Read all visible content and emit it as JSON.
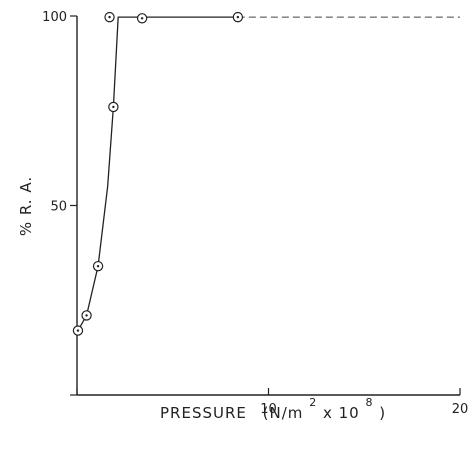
{
  "chart_data": {
    "type": "scatter",
    "title": "",
    "xlabel": "PRESSURE",
    "xlabel_units_prefix": "(N/m",
    "xlabel_units_exp1": "2",
    "xlabel_units_mid": "x 10",
    "xlabel_units_exp2": "8",
    "xlabel_units_suffix": ")",
    "ylabel": "% R. A.",
    "xlim": [
      0,
      20
    ],
    "ylim": [
      0,
      100
    ],
    "xticks": [
      {
        "value": 0,
        "label": ""
      },
      {
        "value": 10,
        "label": "10"
      },
      {
        "value": 20,
        "label": "20"
      }
    ],
    "yticks": [
      {
        "value": 0,
        "label": ""
      },
      {
        "value": 50,
        "label": "50"
      },
      {
        "value": 100,
        "label": "100"
      }
    ],
    "grid": false,
    "series": [
      {
        "marker": "circle-dot",
        "points": [
          {
            "x": 0.05,
            "y": 17
          },
          {
            "x": 0.5,
            "y": 21
          },
          {
            "x": 1.1,
            "y": 34
          },
          {
            "x": 1.9,
            "y": 76
          },
          {
            "x": 1.7,
            "y": 99.7
          },
          {
            "x": 3.4,
            "y": 99.4
          },
          {
            "x": 8.4,
            "y": 99.7
          }
        ],
        "curve_solid": [
          {
            "x": 0.05,
            "y": 17
          },
          {
            "x": 0.5,
            "y": 21
          },
          {
            "x": 1.1,
            "y": 34
          },
          {
            "x": 1.6,
            "y": 55
          },
          {
            "x": 1.9,
            "y": 76
          },
          {
            "x": 2.15,
            "y": 99.7
          },
          {
            "x": 8.4,
            "y": 99.7
          }
        ],
        "curve_dashed": [
          {
            "x": 8.4,
            "y": 99.7
          },
          {
            "x": 20,
            "y": 99.7
          }
        ]
      }
    ]
  }
}
